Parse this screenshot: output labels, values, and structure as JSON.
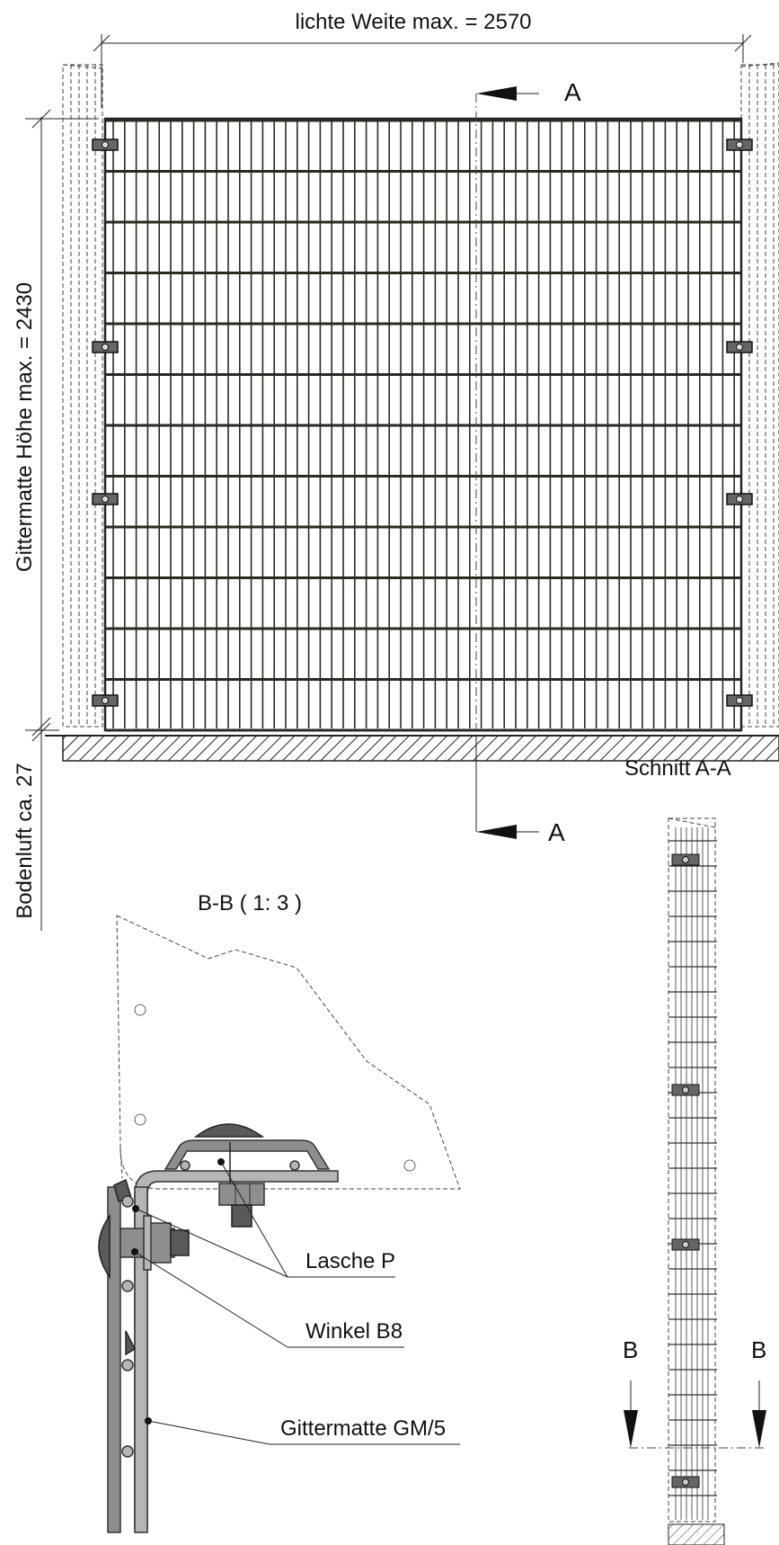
{
  "dimensions": {
    "width_label": "lichte Weite max. = 2570",
    "height_label": "Gittermatte Höhe max. =   2430",
    "ground_label": "Bodenluft ca.   27"
  },
  "section_markers": {
    "a_top": "A",
    "a_bottom": "A",
    "b_left": "B",
    "b_right": "B"
  },
  "views": {
    "section_aa_title": "Schnitt A-A",
    "detail_bb_title": "B-B ( 1: 3 )"
  },
  "callouts": {
    "lasche": "Lasche P",
    "winkel": "Winkel B8",
    "gittermatte": "Gittermatte GM/5"
  }
}
